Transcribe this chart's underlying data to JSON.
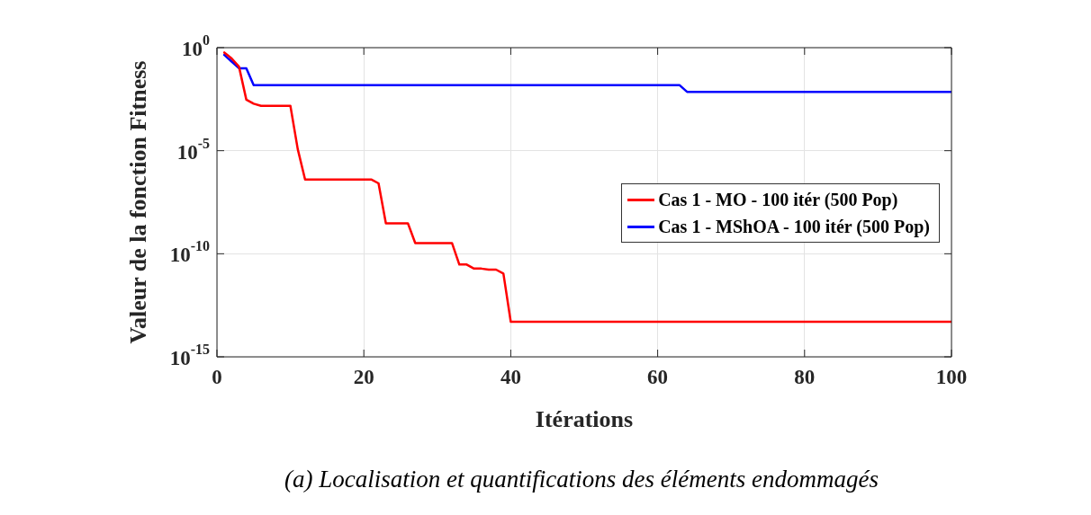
{
  "chart_data": {
    "type": "line",
    "xlabel": "Itérations",
    "ylabel": "Valeur de la fonction Fitness",
    "series": [
      {
        "name": "Cas 1 - MO - 100 itér (500 Pop)",
        "color": "#ff0000",
        "x": [
          1,
          2,
          3,
          4,
          5,
          6,
          10,
          11,
          12,
          21,
          22,
          23,
          26,
          27,
          32,
          33,
          34,
          35,
          36,
          37,
          38,
          39,
          40,
          100
        ],
        "values": [
          0.58,
          0.3,
          0.12,
          0.003,
          0.0019,
          0.0015,
          0.0015,
          1.2e-05,
          4e-07,
          4e-07,
          2.6e-07,
          3e-09,
          3e-09,
          3.3e-10,
          3.3e-10,
          3e-11,
          3e-11,
          1.9e-11,
          1.9e-11,
          1.7e-11,
          1.7e-11,
          1.1e-11,
          5e-14,
          5e-14
        ]
      },
      {
        "name": "Cas 1 - MShOA - 100 itér (500 Pop)",
        "color": "#0000ff",
        "x": [
          1,
          2,
          3,
          4,
          5,
          63,
          64,
          100
        ],
        "values": [
          0.44,
          0.21,
          0.1,
          0.1,
          0.015,
          0.015,
          0.0072,
          0.0072
        ]
      }
    ],
    "xlim": [
      0,
      100
    ],
    "xticks": [
      0,
      20,
      40,
      60,
      80,
      100
    ],
    "ylim": [
      1e-15,
      1
    ],
    "yticks": [
      {
        "value": 1,
        "label": "10$^{0}$"
      },
      {
        "value": 1e-05,
        "label": "10$^{-5}$"
      },
      {
        "value": 1e-10,
        "label": "10$^{-10}$"
      },
      {
        "value": 1e-15,
        "label": "10$^{-15}$"
      }
    ],
    "log": "y",
    "grid": true,
    "legend": "right",
    "marker": "none",
    "line_style": "solid",
    "annotations": [
      "(a) Localisation et quantifications des éléments endommagés"
    ]
  }
}
